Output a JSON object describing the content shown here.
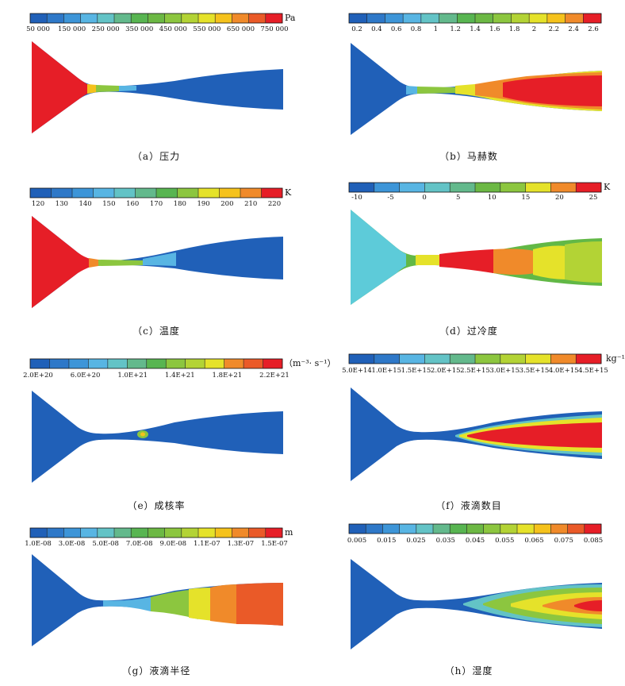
{
  "colors": {
    "blue": "#2060b8",
    "cyan": "#5dcbd9",
    "green": "#62b846",
    "yellow": "#f2e61f",
    "orange": "#f08a2a",
    "red": "#e61e27"
  },
  "panels": [
    {
      "caption": "（a）压力",
      "unit": "Pa",
      "ticks": [
        "50 000",
        "150 000",
        "250 000",
        "350 000",
        "450 000",
        "550 000",
        "650 000",
        "750 000"
      ],
      "bands": [
        "#2060b8",
        "#2e78c8",
        "#3d95d8",
        "#58b5e3",
        "#63c3c6",
        "#63b98c",
        "#58b551",
        "#6cb844",
        "#8cc63f",
        "#b3d335",
        "#e5e22a",
        "#f5c21c",
        "#f08a2a",
        "#ea5a28",
        "#e61e27"
      ],
      "body_color": "#2060b8",
      "inlet_color": "#e61e27"
    },
    {
      "caption": "（b）马赫数",
      "unit": "",
      "ticks": [
        "0.2",
        "0.4",
        "0.6",
        "0.8",
        "1",
        "1.2",
        "1.4",
        "1.6",
        "1.8",
        "2",
        "2.2",
        "2.4",
        "2.6"
      ],
      "bands": [
        "#2060b8",
        "#2e78c8",
        "#3d95d8",
        "#58b5e3",
        "#63c3c6",
        "#63b98c",
        "#58b551",
        "#6cb844",
        "#8cc63f",
        "#b3d335",
        "#e5e22a",
        "#f5c21c",
        "#f08a2a",
        "#e61e27"
      ],
      "body_color": "#e61e27",
      "inlet_color": "#2060b8"
    },
    {
      "caption": "（c）温度",
      "unit": "K",
      "ticks": [
        "120",
        "130",
        "140",
        "150",
        "160",
        "170",
        "180",
        "190",
        "200",
        "210",
        "220"
      ],
      "bands": [
        "#2060b8",
        "#2e78c8",
        "#3d95d8",
        "#58b5e3",
        "#63c3c6",
        "#63b98c",
        "#58b551",
        "#8cc63f",
        "#e5e22a",
        "#f5c21c",
        "#f08a2a",
        "#e61e27"
      ],
      "body_color": "#2060b8",
      "inlet_color": "#e61e27"
    },
    {
      "caption": "（d）过冷度",
      "unit": "K",
      "ticks": [
        "-10",
        "-5",
        "0",
        "5",
        "10",
        "15",
        "20",
        "25"
      ],
      "bands": [
        "#2060b8",
        "#3d95d8",
        "#58b5e3",
        "#63c3c6",
        "#63b98c",
        "#6cb844",
        "#8cc63f",
        "#e5e22a",
        "#f08a2a",
        "#e61e27"
      ],
      "body_color": "#62b846",
      "inlet_color": "#5dcbd9"
    },
    {
      "caption": "（e）成核率",
      "unit": "（m⁻³· s⁻¹）",
      "ticks": [
        "2.0E+20",
        "6.0E+20",
        "1.0E+21",
        "1.4E+21",
        "1.8E+21",
        "2.2E+21"
      ],
      "bands": [
        "#2060b8",
        "#2e78c8",
        "#3d95d8",
        "#58b5e3",
        "#63c3c6",
        "#63b98c",
        "#58b551",
        "#8cc63f",
        "#b3d335",
        "#e5e22a",
        "#f08a2a",
        "#ea5a28",
        "#e61e27"
      ],
      "body_color": "#2060b8",
      "inlet_color": "#2060b8"
    },
    {
      "caption": "（f）液滴数目",
      "unit": "kg⁻¹",
      "ticks": [
        "5.0E+14",
        "1.0E+15",
        "1.5E+15",
        "2.0E+15",
        "2.5E+15",
        "3.0E+15",
        "3.5E+15",
        "4.0E+15",
        "4.5E+15"
      ],
      "bands": [
        "#2060b8",
        "#2e78c8",
        "#58b5e3",
        "#63c3c6",
        "#63b98c",
        "#8cc63f",
        "#b3d335",
        "#e5e22a",
        "#f08a2a",
        "#e61e27"
      ],
      "body_color": "#2060b8",
      "inlet_color": "#2060b8"
    },
    {
      "caption": "（g）液滴半径",
      "unit": "m",
      "ticks": [
        "1.0E-08",
        "3.0E-08",
        "5.0E-08",
        "7.0E-08",
        "9.0E-08",
        "1.1E-07",
        "1.3E-07",
        "1.5E-07"
      ],
      "bands": [
        "#2060b8",
        "#2e78c8",
        "#3d95d8",
        "#58b5e3",
        "#63c3c6",
        "#63b98c",
        "#58b551",
        "#6cb844",
        "#8cc63f",
        "#b3d335",
        "#e5e22a",
        "#f5c21c",
        "#f08a2a",
        "#ea5a28",
        "#e61e27"
      ],
      "body_color": "#2060b8",
      "inlet_color": "#2060b8"
    },
    {
      "caption": "（h）湿度",
      "unit": "",
      "ticks": [
        "0.005",
        "0.015",
        "0.025",
        "0.035",
        "0.045",
        "0.055",
        "0.065",
        "0.075",
        "0.085"
      ],
      "bands": [
        "#2060b8",
        "#2e78c8",
        "#3d95d8",
        "#58b5e3",
        "#63c3c6",
        "#63b98c",
        "#58b551",
        "#6cb844",
        "#8cc63f",
        "#b3d335",
        "#e5e22a",
        "#f5c21c",
        "#f08a2a",
        "#ea5a28",
        "#e61e27"
      ],
      "body_color": "#2060b8",
      "inlet_color": "#2060b8"
    }
  ]
}
